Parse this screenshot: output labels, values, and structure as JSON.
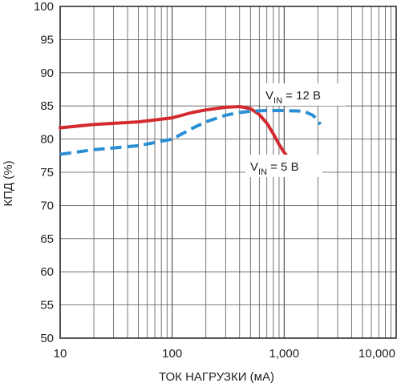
{
  "chart_data": {
    "type": "line",
    "xscale": "log",
    "xlim": [
      10,
      10000
    ],
    "ylim": [
      50,
      100
    ],
    "grid": true,
    "xlabel": "ТОК НАГРУЗКИ (мА)",
    "ylabel": "КПД (%)",
    "xticks": [
      "10",
      "100",
      "1,000",
      "10,000"
    ],
    "yticks": [
      "50",
      "55",
      "60",
      "65",
      "70",
      "75",
      "80",
      "85",
      "90",
      "95",
      "100"
    ],
    "series": [
      {
        "name": "VIN = 5 В",
        "label_main": "V",
        "label_sub": "IN",
        "label_rest": " = 5 В",
        "color": "#d42a2f",
        "dash": "solid",
        "points": [
          [
            10,
            81.7
          ],
          [
            20,
            82.2
          ],
          [
            50,
            82.6
          ],
          [
            100,
            83.2
          ],
          [
            150,
            84.0
          ],
          [
            200,
            84.4
          ],
          [
            300,
            84.8
          ],
          [
            400,
            84.9
          ],
          [
            500,
            84.6
          ],
          [
            600,
            83.7
          ],
          [
            700,
            82.4
          ],
          [
            800,
            80.8
          ],
          [
            900,
            79.2
          ],
          [
            1000,
            78.0
          ],
          [
            1100,
            77.1
          ]
        ]
      },
      {
        "name": "VIN = 12 В",
        "label_main": "V",
        "label_sub": "IN",
        "label_rest": " = 12 В",
        "color": "#2a8fd4",
        "dash": "dashed",
        "points": [
          [
            10,
            77.7
          ],
          [
            20,
            78.4
          ],
          [
            50,
            79.0
          ],
          [
            100,
            80.0
          ],
          [
            150,
            81.6
          ],
          [
            200,
            82.6
          ],
          [
            300,
            83.6
          ],
          [
            400,
            84.0
          ],
          [
            500,
            84.2
          ],
          [
            700,
            84.3
          ],
          [
            1000,
            84.3
          ],
          [
            1500,
            84.2
          ],
          [
            1800,
            83.6
          ],
          [
            2000,
            82.8
          ],
          [
            2100,
            82.2
          ]
        ]
      }
    ]
  }
}
